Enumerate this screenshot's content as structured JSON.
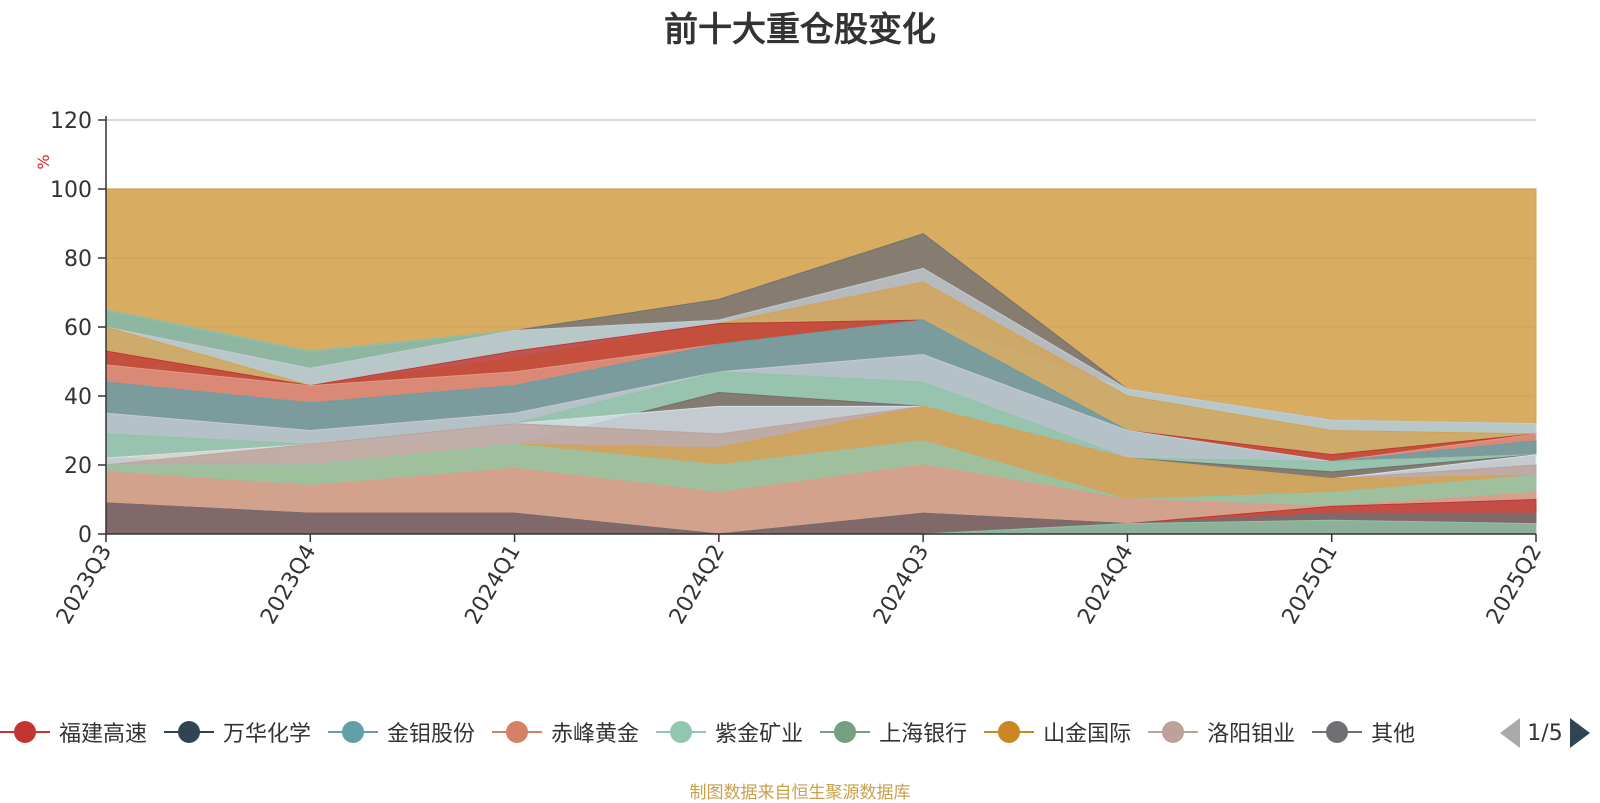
{
  "chart_data": {
    "type": "area",
    "title": "前十大重仓股变化",
    "ylabel": "%",
    "xlabel": "",
    "ylim": [
      0,
      120
    ],
    "yticks": [
      0,
      20,
      40,
      60,
      80,
      100,
      120
    ],
    "grid": true,
    "legend_position": "bottom",
    "categories": [
      "2023Q3",
      "2023Q4",
      "2024Q1",
      "2024Q2",
      "2024Q3",
      "2024Q4",
      "2025Q1",
      "2025Q2"
    ],
    "series": [
      {
        "name": "",
        "color": "#d4a350",
        "values": [
          100,
          100,
          100,
          100,
          100,
          100,
          100,
          100
        ]
      },
      {
        "name": "",
        "color": "#6e7074",
        "values": [
          65,
          53,
          59,
          68,
          87,
          42,
          33,
          32
        ]
      },
      {
        "name": "",
        "color": "#91c7ae",
        "values": [
          65,
          53,
          59,
          62,
          62,
          42,
          33,
          32
        ]
      },
      {
        "name": "",
        "color": "#c4ccd3",
        "values": [
          60,
          48,
          59,
          62,
          77,
          42,
          33,
          32
        ]
      },
      {
        "name": "",
        "color": "#d4a350",
        "values": [
          60,
          43,
          51,
          61,
          73,
          40,
          30,
          29
        ]
      },
      {
        "name": "",
        "color": "#c23531",
        "values": [
          53,
          43,
          53,
          61,
          62,
          30,
          23,
          29
        ]
      },
      {
        "name": "",
        "color": "#e09a88",
        "values": [
          49,
          43,
          47,
          55,
          62,
          30,
          21,
          29
        ]
      },
      {
        "name": "",
        "color": "#61a0a8",
        "values": [
          44,
          38,
          43,
          55,
          62,
          30,
          21,
          27
        ]
      },
      {
        "name": "",
        "color": "#c4ccd3",
        "values": [
          35,
          30,
          35,
          47,
          52,
          30,
          21,
          23
        ]
      },
      {
        "name": "",
        "color": "#8fc4a6",
        "values": [
          29,
          26,
          32,
          47,
          44,
          22,
          21,
          23
        ]
      },
      {
        "name": "",
        "color": "#d4a350",
        "values": [
          22,
          26,
          26,
          41,
          37,
          22,
          18,
          23
        ]
      },
      {
        "name": "",
        "color": "#6e7074",
        "values": [
          22,
          20,
          26,
          41,
          37,
          22,
          18,
          23
        ]
      },
      {
        "name": "",
        "color": "#d7e2ea",
        "values": [
          22,
          26,
          32,
          37,
          37,
          22,
          16,
          23
        ]
      },
      {
        "name": "",
        "color": "#bda29a",
        "values": [
          20,
          26,
          32,
          29,
          37,
          22,
          16,
          20
        ]
      },
      {
        "name": "",
        "color": "#d4a350",
        "values": [
          20,
          20,
          26,
          25,
          37,
          22,
          16,
          17
        ]
      },
      {
        "name": "",
        "color": "#91c7ae",
        "values": [
          20,
          20,
          26,
          20,
          27,
          10,
          12,
          17
        ]
      },
      {
        "name": "",
        "color": "#e09a88",
        "values": [
          18,
          14,
          19,
          12,
          20,
          10,
          8,
          12
        ]
      },
      {
        "name": "",
        "color": "#c23531",
        "values": [
          9,
          6,
          6,
          0,
          6,
          3,
          8,
          10
        ]
      },
      {
        "name": "",
        "color": "#6e7074",
        "values": [
          9,
          6,
          6,
          0,
          6,
          3,
          6,
          6
        ]
      },
      {
        "name": "",
        "color": "#8fc4a6",
        "values": [
          0,
          0,
          0,
          0,
          0,
          3,
          4,
          3
        ]
      }
    ]
  },
  "legend": {
    "items": [
      {
        "label": "福建高速",
        "color": "#c23531"
      },
      {
        "label": "万华化学",
        "color": "#2f4554"
      },
      {
        "label": "金钼股份",
        "color": "#61a0a8"
      },
      {
        "label": "赤峰黄金",
        "color": "#d48265"
      },
      {
        "label": "紫金矿业",
        "color": "#91c7ae"
      },
      {
        "label": "上海银行",
        "color": "#749f83"
      },
      {
        "label": "山金国际",
        "color": "#ca8622"
      },
      {
        "label": "洛阳钼业",
        "color": "#bda29a"
      },
      {
        "label": "其他",
        "color": "#6e7074"
      }
    ],
    "pager": "1/5"
  },
  "source_note": "制图数据来自恒生聚源数据库"
}
